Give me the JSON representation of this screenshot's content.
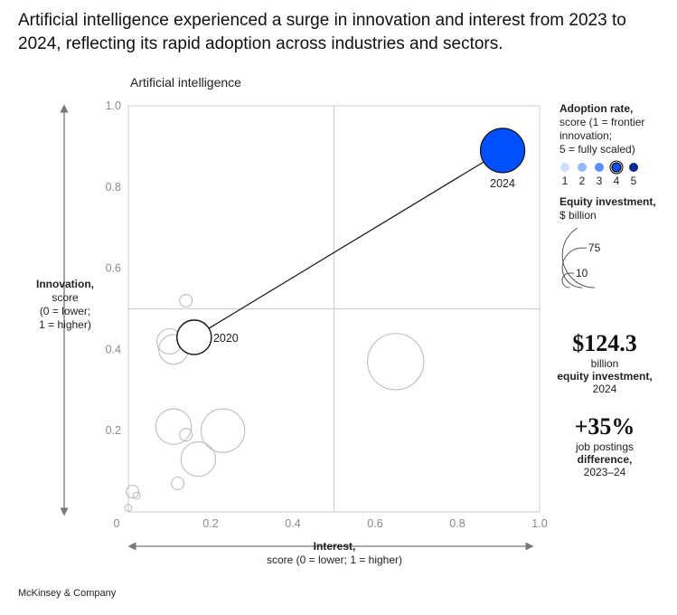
{
  "headline": "Artificial intelligence experienced a surge in innovation and interest from 2023 to 2024, reflecting its rapid adoption across industries and sectors.",
  "footer": "McKinsey & Company",
  "colors": {
    "highlight": "#0050ff",
    "grid": "#cccccc",
    "bubble_stroke": "#bdbdbd",
    "axis": "#777777"
  },
  "legend": {
    "adoption": {
      "title": "Adoption rate,",
      "lines": [
        "score (1 = frontier",
        "innovation;",
        "5 = fully scaled)"
      ],
      "levels": [
        "1",
        "2",
        "3",
        "4",
        "5"
      ],
      "colors": [
        "#cfe0ff",
        "#93b8ff",
        "#5b8eff",
        "#0050ff",
        "#0a2a8c"
      ]
    },
    "equity": {
      "title": "Equity investment,",
      "unit": "$ billion",
      "sizes": [
        "200",
        "75",
        "10"
      ]
    }
  },
  "stats": [
    {
      "value": "$124.3",
      "line1": "billion",
      "line2": "equity investment,",
      "line3": "2024"
    },
    {
      "value": "+35%",
      "line1": "job postings",
      "line2": "difference,",
      "line3": "2023–24"
    }
  ],
  "chart_data": {
    "type": "scatter",
    "title": "Artificial intelligence",
    "xlabel": "Interest,",
    "xlabel_sub": "score (0 = lower; 1 = higher)",
    "ylabel": "Innovation,",
    "ylabel_sub": [
      "score",
      "(0 = lower;",
      "1 = higher)"
    ],
    "xlim": [
      0,
      1.0
    ],
    "ylim": [
      0,
      1.0
    ],
    "x_ticks": [
      "0",
      "0.2",
      "0.4",
      "0.6",
      "0.8",
      "1.0"
    ],
    "y_ticks": [
      "0.2",
      "0.4",
      "0.6",
      "0.8",
      "1.0"
    ],
    "quadrant_lines": {
      "x": 0.5,
      "y": 0.5
    },
    "path": [
      {
        "label": "2020",
        "x": 0.16,
        "y": 0.43,
        "investment": 75
      },
      {
        "label": "2024",
        "x": 0.91,
        "y": 0.89,
        "investment": 124.3
      }
    ],
    "other_points": [
      {
        "x": 0.14,
        "y": 0.52,
        "investment": 10
      },
      {
        "x": 0.1,
        "y": 0.42,
        "investment": 40
      },
      {
        "x": 0.11,
        "y": 0.4,
        "investment": 55
      },
      {
        "x": 0.11,
        "y": 0.21,
        "investment": 80
      },
      {
        "x": 0.14,
        "y": 0.19,
        "investment": 10
      },
      {
        "x": 0.23,
        "y": 0.2,
        "investment": 120
      },
      {
        "x": 0.17,
        "y": 0.13,
        "investment": 75
      },
      {
        "x": 0.12,
        "y": 0.07,
        "investment": 10
      },
      {
        "x": 0.01,
        "y": 0.05,
        "investment": 10
      },
      {
        "x": 0.02,
        "y": 0.04,
        "investment": 3
      },
      {
        "x": 0.0,
        "y": 0.01,
        "investment": 3
      },
      {
        "x": 0.65,
        "y": 0.37,
        "investment": 200
      }
    ]
  }
}
